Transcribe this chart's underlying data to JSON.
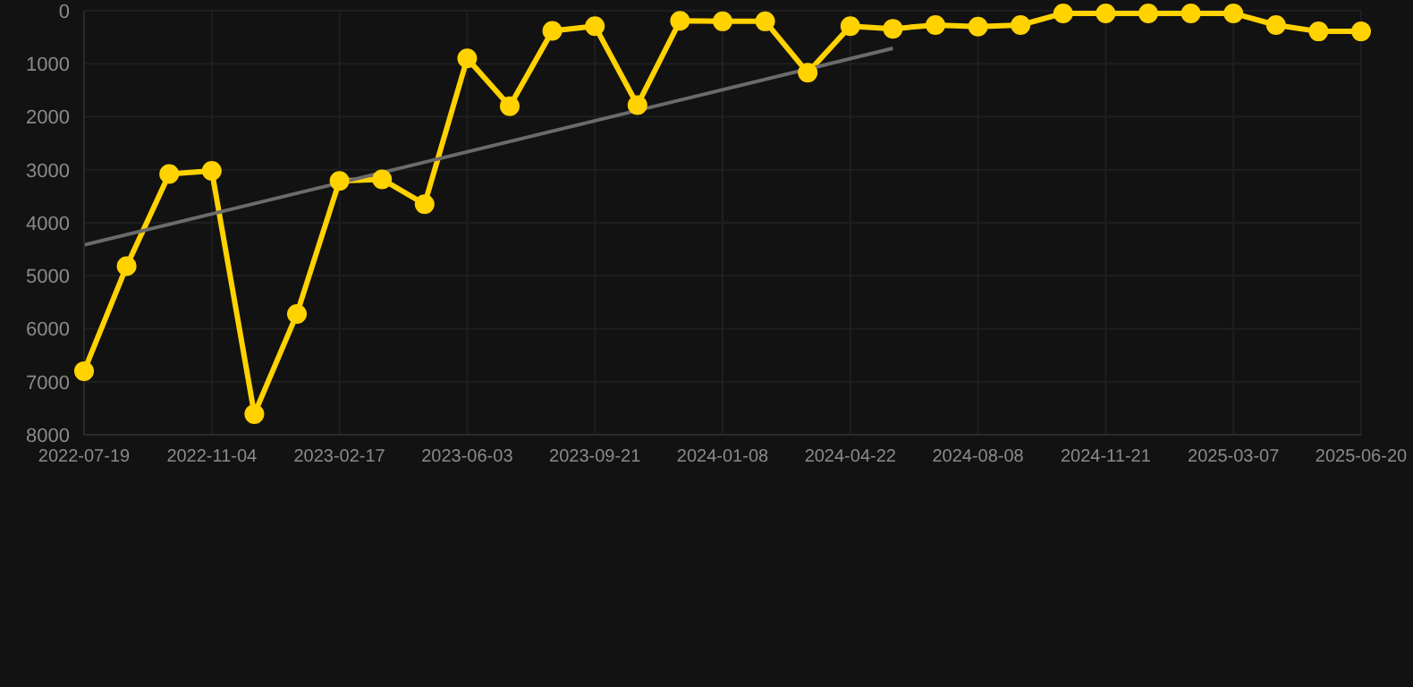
{
  "chart_data": {
    "type": "line",
    "categories": [
      "2022-07-19",
      null,
      null,
      "2022-11-04",
      null,
      null,
      "2023-02-17",
      null,
      null,
      "2023-06-03",
      null,
      null,
      "2023-09-21",
      null,
      null,
      "2024-01-08",
      null,
      null,
      "2024-04-22",
      null,
      null,
      "2024-08-08",
      null,
      null,
      "2024-11-21",
      null,
      null,
      "2025-03-07",
      null,
      null,
      "2025-06-20"
    ],
    "series": [
      {
        "color": "#ffd200",
        "marker": "circle",
        "values": [
          6800,
          4820,
          3080,
          3020,
          7610,
          5720,
          3210,
          3180,
          3650,
          900,
          1800,
          380,
          290,
          1780,
          190,
          200,
          200,
          1170,
          290,
          340,
          270,
          300,
          270,
          50,
          50,
          50,
          50,
          50,
          270,
          390,
          390
        ]
      },
      {
        "color": "#6b6b6b",
        "marker": "none",
        "values": [
          4420,
          null,
          null,
          null,
          null,
          null,
          null,
          null,
          null,
          null,
          null,
          null,
          null,
          null,
          null,
          null,
          null,
          null,
          null,
          710,
          null,
          null,
          null,
          null,
          null,
          null,
          null,
          null,
          null,
          null,
          null
        ]
      }
    ],
    "ylim": [
      8000,
      0
    ],
    "yticks": [
      0,
      1000,
      2000,
      3000,
      4000,
      5000,
      6000,
      7000,
      8000
    ],
    "grid": true
  }
}
